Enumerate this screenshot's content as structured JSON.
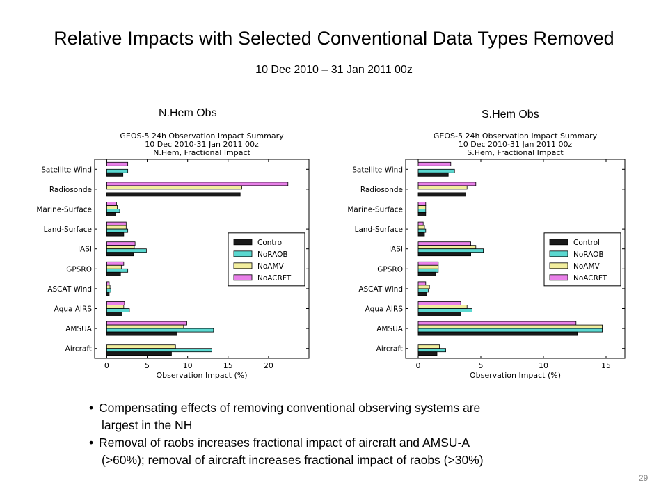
{
  "slide": {
    "title": "Relative Impacts with Selected Conventional Data Types Removed",
    "subtitle": "10 Dec 2010 – 31 Jan 2011  00z",
    "panel_left_label": "N.Hem Obs",
    "panel_right_label": "S.Hem Obs",
    "bullets": [
      {
        "line1": "Compensating effects of removing conventional observing systems are",
        "line2": "largest in the NH"
      },
      {
        "line1": "Removal of raobs increases fractional impact of aircraft and AMSU-A",
        "line2": "(>60%);  removal of aircraft increases fractional impact of raobs (>30%)"
      }
    ],
    "page_number": "29"
  },
  "colors": {
    "Control": "#1a1a1a",
    "NoRAOB": "#5ad8d0",
    "NoAMV": "#f2ee9e",
    "NoACRFT": "#e880e8"
  },
  "chart_data": [
    {
      "type": "bar",
      "orientation": "horizontal",
      "title": "GEOS-5 24h Observation Impact Summary",
      "title_line2": "10 Dec 2010-31 Jan 2011 00z",
      "title_line3": "N.Hem, Fractional Impact",
      "xlabel": "Observation Impact (%)",
      "ylabel": "",
      "xlim": [
        -1.5,
        25
      ],
      "xticks": [
        0,
        5,
        10,
        15,
        20
      ],
      "grid": false,
      "legend_position": "center-right",
      "categories": [
        "Satellite Wind",
        "Radiosonde",
        "Marine-Surface",
        "Land-Surface",
        "IASI",
        "GPSRO",
        "ASCAT Wind",
        "Aqua AIRS",
        "AMSUA",
        "Aircraft"
      ],
      "series": [
        {
          "name": "Control",
          "values": [
            2.0,
            16.5,
            1.1,
            2.1,
            3.3,
            1.7,
            0.3,
            1.9,
            8.7,
            8.0
          ]
        },
        {
          "name": "NoRAOB",
          "values": [
            2.6,
            0.0,
            1.6,
            2.6,
            4.9,
            2.6,
            0.5,
            2.8,
            13.2,
            13.0
          ]
        },
        {
          "name": "NoAMV",
          "values": [
            0.0,
            16.7,
            1.3,
            2.4,
            3.4,
            1.8,
            0.4,
            2.1,
            9.5,
            8.5
          ]
        },
        {
          "name": "NoACRFT",
          "values": [
            2.6,
            22.4,
            1.2,
            2.4,
            3.5,
            2.1,
            0.3,
            2.2,
            9.9,
            0.0
          ]
        }
      ]
    },
    {
      "type": "bar",
      "orientation": "horizontal",
      "title": "GEOS-5 24h Observation Impact Summary",
      "title_line2": "10 Dec 2010-31 Jan 2011 00z",
      "title_line3": "S.Hem, Fractional Impact",
      "xlabel": "Observation Impact (%)",
      "ylabel": "",
      "xlim": [
        -1.0,
        16.5
      ],
      "xticks": [
        0,
        5,
        10,
        15
      ],
      "grid": false,
      "legend_position": "center-right",
      "categories": [
        "Satellite Wind",
        "Radiosonde",
        "Marine-Surface",
        "Land-Surface",
        "IASI",
        "GPSRO",
        "ASCAT Wind",
        "Aqua AIRS",
        "AMSUA",
        "Aircraft"
      ],
      "series": [
        {
          "name": "Control",
          "values": [
            2.4,
            3.8,
            0.6,
            0.5,
            4.2,
            1.4,
            0.7,
            3.4,
            12.7,
            1.5
          ]
        },
        {
          "name": "NoRAOB",
          "values": [
            2.9,
            0.0,
            0.6,
            0.6,
            5.2,
            1.6,
            0.8,
            4.3,
            14.7,
            2.2
          ]
        },
        {
          "name": "NoAMV",
          "values": [
            0.0,
            3.9,
            0.6,
            0.5,
            4.6,
            1.6,
            0.9,
            3.9,
            14.7,
            1.7
          ]
        },
        {
          "name": "NoACRFT",
          "values": [
            2.6,
            4.6,
            0.6,
            0.4,
            4.2,
            1.6,
            0.6,
            3.4,
            12.6,
            0.0
          ]
        }
      ]
    }
  ]
}
